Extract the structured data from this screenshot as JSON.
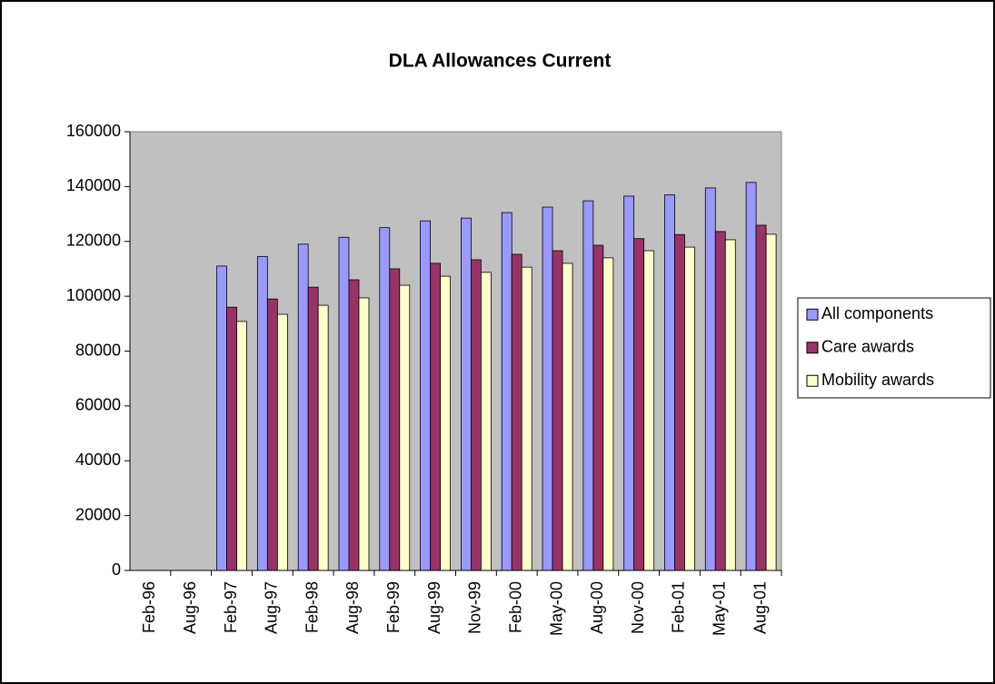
{
  "chart_data": {
    "type": "bar",
    "title": "DLA Allowances Current",
    "categories": [
      "Feb-96",
      "Aug-96",
      "Feb-97",
      "Aug-97",
      "Feb-98",
      "Aug-98",
      "Feb-99",
      "Aug-99",
      "Nov-99",
      "Feb-00",
      "May-00",
      "Aug-00",
      "Nov-00",
      "Feb-01",
      "May-01",
      "Aug-01"
    ],
    "series": [
      {
        "name": "All components",
        "color": "#9999ff",
        "values": [
          null,
          null,
          111000,
          114500,
          119000,
          121500,
          125000,
          127500,
          128500,
          130500,
          132500,
          134800,
          136500,
          137000,
          139500,
          141500
        ]
      },
      {
        "name": "Care awards",
        "color": "#993366",
        "values": [
          null,
          null,
          96000,
          99000,
          103300,
          106000,
          110000,
          112000,
          113300,
          115300,
          116600,
          118600,
          121000,
          122500,
          123600,
          125900
        ]
      },
      {
        "name": "Mobility awards",
        "color": "#ffffcc",
        "values": [
          null,
          null,
          90800,
          93400,
          96700,
          99400,
          104000,
          107300,
          108700,
          110600,
          112000,
          114000,
          116600,
          117900,
          120600,
          122600
        ]
      }
    ],
    "ylim": [
      0,
      160000
    ],
    "yticks": [
      0,
      20000,
      40000,
      60000,
      80000,
      100000,
      120000,
      140000,
      160000
    ],
    "grid": false,
    "legend": "right",
    "plot_background": "#c0c0c0"
  }
}
